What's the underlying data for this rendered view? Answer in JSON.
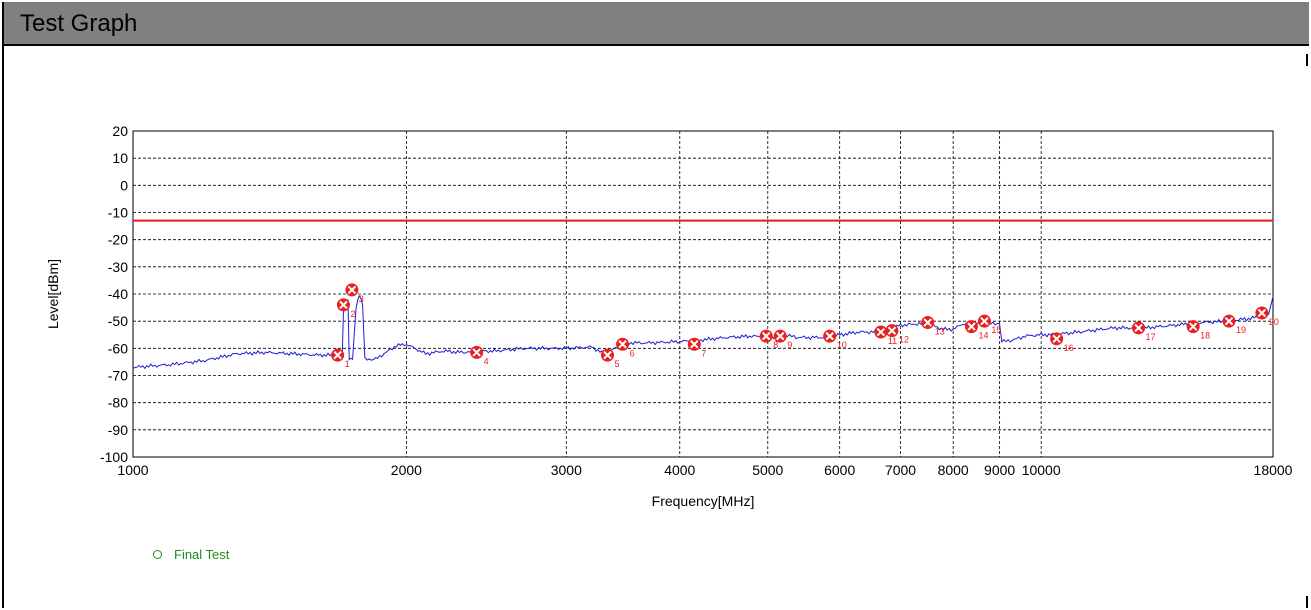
{
  "panel": {
    "title": "Test Graph"
  },
  "legend": {
    "label": "Final Test",
    "color": "#1e8c1e"
  },
  "colors": {
    "trace": "#1f1fd6",
    "limit": "#e81818",
    "marker": "#e82020",
    "marker_label": "#e82020",
    "grid": "#000000"
  },
  "chart_data": {
    "type": "line",
    "xlabel": "Frequency[MHz]",
    "ylabel": "Level[dBm]",
    "x_scale": "log",
    "xlim": [
      1000,
      18000
    ],
    "ylim": [
      -100,
      20
    ],
    "x_ticks": [
      1000,
      2000,
      3000,
      4000,
      5000,
      6000,
      7000,
      8000,
      9000,
      10000,
      18000
    ],
    "y_ticks": [
      20,
      10,
      0,
      -10,
      -20,
      -30,
      -40,
      -50,
      -60,
      -70,
      -80,
      -90,
      -100
    ],
    "grid": true,
    "limit_line": {
      "value": -13
    },
    "series": [
      {
        "name": "Final Test",
        "x": [
          1000,
          1100,
          1200,
          1300,
          1400,
          1500,
          1600,
          1680,
          1700,
          1705,
          1725,
          1730,
          1745,
          1760,
          1775,
          1790,
          1800,
          1850,
          1900,
          1950,
          2000,
          2100,
          2200,
          2300,
          2400,
          2500,
          2700,
          3000,
          3200,
          3300,
          3400,
          3500,
          3700,
          4000,
          4200,
          4500,
          4800,
          5000,
          5200,
          5400,
          5600,
          5800,
          6000,
          6300,
          6600,
          6800,
          7000,
          7300,
          7500,
          7800,
          8000,
          8200,
          8500,
          8800,
          9000,
          9050,
          9300,
          9600,
          10000,
          10300,
          11000,
          12000,
          13000,
          14000,
          15000,
          16000,
          17000,
          17500,
          17800,
          18000
        ],
        "y": [
          -67,
          -66,
          -64.5,
          -62,
          -61.5,
          -62,
          -62.5,
          -62.5,
          -62,
          -47,
          -42,
          -64,
          -64,
          -45,
          -40,
          -44,
          -64,
          -64,
          -61.5,
          -59,
          -58.5,
          -62,
          -61,
          -61.5,
          -61,
          -61,
          -60,
          -60,
          -59.5,
          -62,
          -60,
          -58,
          -58,
          -57.5,
          -57,
          -56,
          -55.5,
          -56,
          -55,
          -56,
          -56,
          -56,
          -55,
          -54,
          -54,
          -53,
          -51.5,
          -51,
          -51,
          -53,
          -53,
          -51,
          -50.5,
          -51,
          -51,
          -57.5,
          -57,
          -55.5,
          -55,
          -55,
          -54,
          -52.5,
          -52.5,
          -51.5,
          -50.5,
          -50,
          -49,
          -48,
          -47.5,
          -41
        ]
      }
    ],
    "markers": [
      {
        "label": "1",
        "x": 1680,
        "y": -62.5
      },
      {
        "label": "2",
        "x": 1705,
        "y": -44
      },
      {
        "label": "3",
        "x": 1742,
        "y": -38.5
      },
      {
        "label": "4",
        "x": 2390,
        "y": -61.5
      },
      {
        "label": "5",
        "x": 3330,
        "y": -62.5
      },
      {
        "label": "6",
        "x": 3460,
        "y": -58.5
      },
      {
        "label": "7",
        "x": 4150,
        "y": -58.5
      },
      {
        "label": "8",
        "x": 4980,
        "y": -55.5
      },
      {
        "label": "9",
        "x": 5160,
        "y": -55.5
      },
      {
        "label": "10",
        "x": 5850,
        "y": -55.5
      },
      {
        "label": "11",
        "x": 6660,
        "y": -54
      },
      {
        "label": "12",
        "x": 6850,
        "y": -53.5
      },
      {
        "label": "13",
        "x": 7500,
        "y": -50.5
      },
      {
        "label": "14",
        "x": 8380,
        "y": -52
      },
      {
        "label": "15",
        "x": 8660,
        "y": -50
      },
      {
        "label": "16",
        "x": 10400,
        "y": -56.5
      },
      {
        "label": "17",
        "x": 12800,
        "y": -52.5
      },
      {
        "label": "18",
        "x": 14700,
        "y": -52
      },
      {
        "label": "19",
        "x": 16100,
        "y": -50
      },
      {
        "label": "20",
        "x": 17500,
        "y": -47
      }
    ]
  }
}
